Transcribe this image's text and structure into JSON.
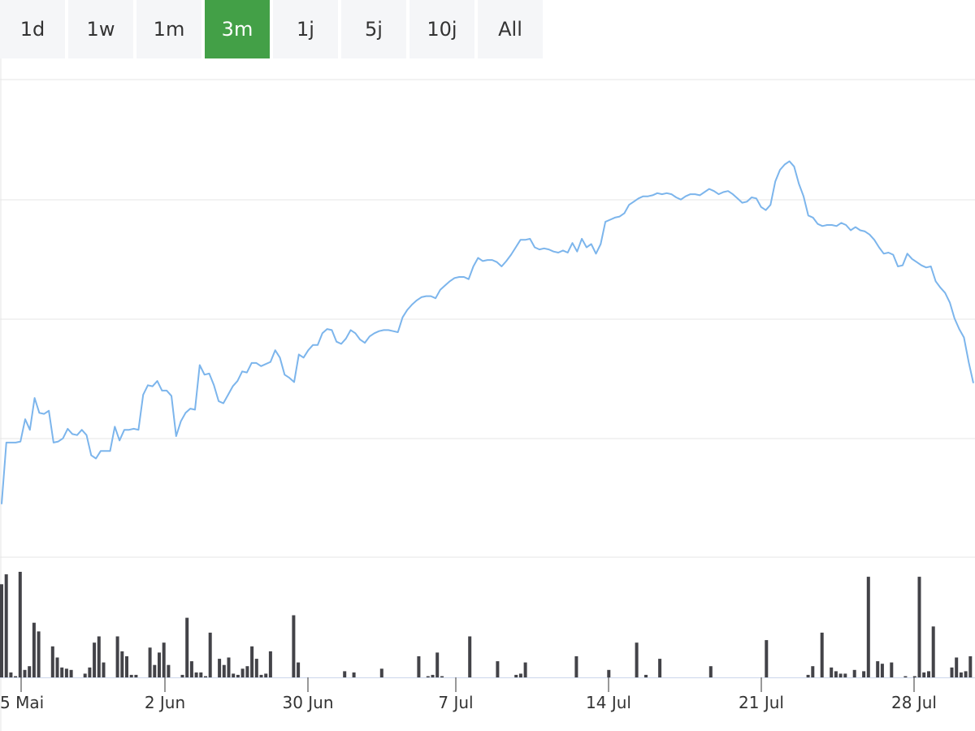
{
  "range_selector": {
    "buttons": [
      "1d",
      "1w",
      "1m",
      "3m",
      "1j",
      "5j",
      "10j",
      "All"
    ],
    "active": "3m"
  },
  "colors": {
    "active_button": "#43a047",
    "line": "#7cb5ec",
    "volume": "#434348",
    "grid": "#e6e6e6"
  },
  "chart_data": {
    "type": "line",
    "x_axis_labels": [
      "5 Mai",
      "2 Jun",
      "30 Jun",
      "7 Jul",
      "14 Jul",
      "21 Jul",
      "28 Jul"
    ],
    "price": [
      10.0,
      15.8,
      15.8,
      15.8,
      15.9,
      18.0,
      17.0,
      20.0,
      18.6,
      18.5,
      18.8,
      15.8,
      15.9,
      16.2,
      17.1,
      16.6,
      16.5,
      17.0,
      16.5,
      14.6,
      14.3,
      15.0,
      15.0,
      15.0,
      17.3,
      16.0,
      17.0,
      17.0,
      17.1,
      17.0,
      20.3,
      21.2,
      21.1,
      21.6,
      20.7,
      20.7,
      20.2,
      16.4,
      17.8,
      18.6,
      19.0,
      18.9,
      23.1,
      22.2,
      22.3,
      21.2,
      19.7,
      19.5,
      20.3,
      21.1,
      21.6,
      22.5,
      22.4,
      23.3,
      23.3,
      23.0,
      23.2,
      23.4,
      24.5,
      23.8,
      22.2,
      21.9,
      21.5,
      24.1,
      23.8,
      24.5,
      25.0,
      25.0,
      26.1,
      26.5,
      26.4,
      25.3,
      25.1,
      25.6,
      26.4,
      26.1,
      25.5,
      25.2,
      25.8,
      26.1,
      26.3,
      26.4,
      26.4,
      26.3,
      26.2,
      27.6,
      28.3,
      28.8,
      29.2,
      29.5,
      29.6,
      29.6,
      29.4,
      30.2,
      30.6,
      31.0,
      31.3,
      31.4,
      31.4,
      31.2,
      32.4,
      33.2,
      32.9,
      33.0,
      33.0,
      32.8,
      32.4,
      32.9,
      33.5,
      34.2,
      34.9,
      34.9,
      35.0,
      34.2,
      34.0,
      34.1,
      34.0,
      33.8,
      33.7,
      33.9,
      33.7,
      34.6,
      33.8,
      35.0,
      34.2,
      34.5,
      33.6,
      34.5,
      36.6,
      36.8,
      37.0,
      37.1,
      37.4,
      38.2,
      38.5,
      38.8,
      39.0,
      39.0,
      39.1,
      39.3,
      39.2,
      39.3,
      39.2,
      38.9,
      38.7,
      39.0,
      39.2,
      39.2,
      39.1,
      39.4,
      39.7,
      39.5,
      39.2,
      39.4,
      39.5,
      39.2,
      38.8,
      38.4,
      38.5,
      38.9,
      38.8,
      38.0,
      37.7,
      38.2,
      40.4,
      41.5,
      42.0,
      42.3,
      41.8,
      40.2,
      39.0,
      37.2,
      37.0,
      36.4,
      36.2,
      36.3,
      36.3,
      36.2,
      36.5,
      36.3,
      35.8,
      36.1,
      35.8,
      35.7,
      35.4,
      34.9,
      34.2,
      33.6,
      33.7,
      33.5,
      32.4,
      32.5,
      33.6,
      33.1,
      32.8,
      32.5,
      32.3,
      32.4,
      31.0,
      30.4,
      29.9,
      29.0,
      27.5,
      26.5,
      25.7,
      23.4,
      21.4
    ],
    "volume": [
      75,
      83,
      4,
      1,
      85,
      6,
      9,
      44,
      37,
      0,
      0,
      25,
      16,
      8,
      7,
      6,
      0,
      0,
      3,
      8,
      28,
      33,
      12,
      0,
      0,
      33,
      21,
      17,
      2,
      2,
      0,
      0,
      24,
      10,
      20,
      28,
      10,
      0,
      0,
      2,
      48,
      13,
      4,
      4,
      1,
      36,
      0,
      15,
      10,
      16,
      3,
      2,
      7,
      9,
      25,
      15,
      2,
      3,
      21,
      0,
      0,
      0,
      0,
      50,
      12,
      0,
      0,
      0,
      0,
      0,
      0,
      0,
      0,
      0,
      5,
      0,
      4,
      0,
      0,
      0,
      0,
      0,
      7,
      0,
      0,
      0,
      0,
      0,
      0,
      0,
      17,
      0,
      1,
      2,
      20,
      1,
      0,
      0,
      0,
      0,
      0,
      33,
      0,
      0,
      0,
      0,
      0,
      13,
      0,
      0,
      0,
      2,
      3,
      12,
      0,
      0,
      0,
      0,
      0,
      0,
      0,
      0,
      0,
      0,
      17,
      0,
      0,
      0,
      0,
      0,
      0,
      6,
      0,
      0,
      0,
      0,
      0,
      28,
      0,
      2,
      0,
      0,
      15,
      0,
      0,
      0,
      0,
      0,
      0,
      0,
      0,
      0,
      0,
      9,
      0,
      0,
      0,
      0,
      0,
      0,
      0,
      0,
      0,
      0,
      0,
      30,
      0,
      0,
      0,
      0,
      0,
      0,
      0,
      0,
      2,
      9,
      0,
      36,
      0,
      8,
      5,
      3,
      3,
      0,
      6,
      0,
      5,
      81,
      0,
      13,
      11,
      0,
      12,
      0,
      0,
      1,
      0,
      1,
      81,
      4,
      5,
      41,
      0,
      0,
      0,
      8,
      16,
      4,
      5,
      17
    ]
  }
}
